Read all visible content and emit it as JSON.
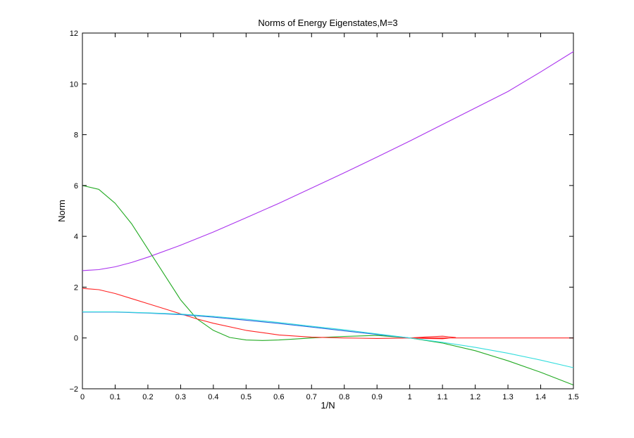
{
  "chart_data": {
    "type": "line",
    "title": "Norms of Energy Eigenstates,M=3",
    "xlabel": "1/N",
    "ylabel": "Norm",
    "xlim": [
      0,
      1.5
    ],
    "ylim": [
      -2,
      12
    ],
    "xticks": [
      0,
      0.1,
      0.2,
      0.3,
      0.4,
      0.5,
      0.6,
      0.7,
      0.8,
      0.9,
      1,
      1.1,
      1.2,
      1.3,
      1.4,
      1.5
    ],
    "yticks": [
      -2,
      0,
      2,
      4,
      6,
      8,
      10,
      12
    ],
    "xtick_labels": [
      "0",
      "0.1",
      "0.2",
      "0.3",
      "0.4",
      "0.5",
      "0.6",
      "0.7",
      "0.8",
      "0.9",
      "1",
      "1.1",
      "1.2",
      "1.3",
      "1.4",
      "1.5"
    ],
    "ytick_labels": [
      "−2",
      "0",
      "2",
      "4",
      "6",
      "8",
      "10",
      "12"
    ],
    "grid": false,
    "series": [
      {
        "color": "#aa33ee",
        "x": [
          0,
          0.05,
          0.1,
          0.15,
          0.2,
          0.3,
          0.4,
          0.5,
          0.6,
          0.7,
          0.8,
          0.9,
          1.0,
          1.1,
          1.2,
          1.3,
          1.4,
          1.5
        ],
        "y": [
          2.65,
          2.69,
          2.8,
          2.97,
          3.18,
          3.65,
          4.17,
          4.73,
          5.3,
          5.9,
          6.5,
          7.12,
          7.75,
          8.4,
          9.05,
          9.7,
          10.47,
          11.27
        ]
      },
      {
        "color": "#22aa22",
        "x": [
          0,
          0.05,
          0.1,
          0.15,
          0.2,
          0.25,
          0.3,
          0.35,
          0.4,
          0.45,
          0.5,
          0.55,
          0.6,
          0.65,
          0.7,
          0.8,
          0.9,
          1.0,
          1.1,
          1.2,
          1.3,
          1.4,
          1.5
        ],
        "y": [
          6.0,
          5.85,
          5.3,
          4.5,
          3.5,
          2.5,
          1.5,
          0.75,
          0.3,
          0.02,
          -0.08,
          -0.1,
          -0.08,
          -0.04,
          0.0,
          0.06,
          0.1,
          0.0,
          -0.2,
          -0.5,
          -0.9,
          -1.35,
          -1.85
        ]
      },
      {
        "color": "#ff2222",
        "x": [
          0,
          0.05,
          0.1,
          0.15,
          0.2,
          0.25,
          0.3,
          0.35,
          0.4,
          0.5,
          0.6,
          0.7,
          0.8,
          0.9,
          1.0,
          1.05,
          1.1,
          1.14,
          1.1,
          1.05,
          1.0,
          1.1,
          1.2,
          1.3,
          1.4,
          1.5
        ],
        "y": [
          1.95,
          1.9,
          1.75,
          1.55,
          1.35,
          1.15,
          0.95,
          0.75,
          0.58,
          0.3,
          0.12,
          0.03,
          0.0,
          -0.02,
          0.0,
          0.04,
          0.07,
          0.02,
          -0.03,
          -0.02,
          0.0,
          0.0,
          0.0,
          0.0,
          0.0,
          0.0
        ]
      },
      {
        "color": "#2266dd",
        "x": [
          0,
          0.1,
          0.2,
          0.3,
          0.4,
          0.5,
          0.6,
          0.7,
          0.8,
          0.9,
          1.0
        ],
        "y": [
          1.02,
          1.02,
          0.98,
          0.92,
          0.82,
          0.7,
          0.57,
          0.43,
          0.28,
          0.14,
          0.0
        ]
      },
      {
        "color": "#33dddd",
        "x": [
          0,
          0.1,
          0.2,
          0.3,
          0.4,
          0.5,
          0.6,
          0.7,
          0.8,
          0.9,
          1.0,
          1.1,
          1.2,
          1.3,
          1.4,
          1.5
        ],
        "y": [
          1.03,
          1.03,
          0.99,
          0.94,
          0.85,
          0.74,
          0.61,
          0.46,
          0.32,
          0.16,
          0.0,
          -0.17,
          -0.37,
          -0.6,
          -0.87,
          -1.17
        ]
      }
    ]
  }
}
